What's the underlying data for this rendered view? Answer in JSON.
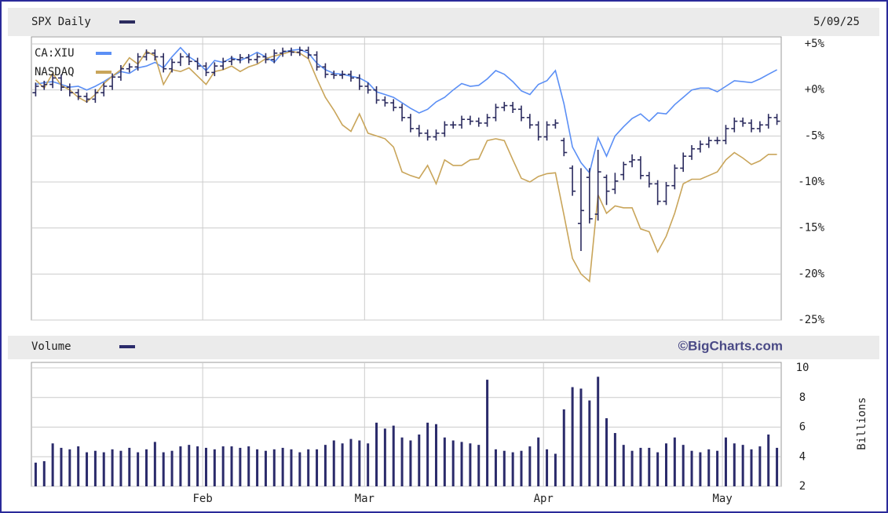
{
  "chart_data": [
    {
      "type": "ohlc",
      "date": "5/09/25",
      "ylim": [
        -25,
        5
      ],
      "yticks": [
        {
          "value": 5,
          "label": "+5%"
        },
        {
          "value": 0,
          "label": "+0%"
        },
        {
          "value": -5,
          "label": "-5%"
        },
        {
          "value": -10,
          "label": "-10%"
        },
        {
          "value": -15,
          "label": "-15%"
        },
        {
          "value": -20,
          "label": "-20%"
        },
        {
          "value": -25,
          "label": "-25%"
        }
      ],
      "grid": true,
      "series": [
        {
          "name": "SPX Daily",
          "type": "ohlc",
          "color": "#2b2b5e",
          "open": [
            -0.3,
            0.4,
            0.6,
            1.3,
            0.3,
            -0.3,
            -0.7,
            -1.0,
            -0.3,
            0.4,
            1.4,
            2.3,
            2.5,
            3.6,
            4.0,
            3.6,
            2.3,
            3.0,
            3.6,
            3.1,
            2.6,
            1.9,
            2.6,
            3.1,
            3.3,
            3.5,
            3.3,
            3.6,
            3.3,
            4.0,
            4.2,
            4.1,
            4.3,
            3.8,
            2.5,
            1.7,
            1.6,
            1.7,
            1.3,
            0.4,
            0.0,
            -1.1,
            -1.4,
            -1.9,
            -3.0,
            -4.2,
            -4.7,
            -5.1,
            -4.7,
            -3.8,
            -3.8,
            -3.2,
            -3.4,
            -3.6,
            -3.0,
            -1.9,
            -1.7,
            -2.1,
            -3.0,
            -3.8,
            -5.1,
            -3.8,
            -5.5,
            -8.5,
            -14.5,
            -9.5,
            -13.5,
            -9.5,
            -10.8,
            -9.2,
            -7.8,
            -7.6,
            -9.3,
            -10.2,
            -12.1,
            -10.4,
            -8.5,
            -7.2,
            -6.4,
            -5.9,
            -5.5,
            -5.5,
            -4.2,
            -3.4,
            -3.6,
            -4.2,
            -3.8,
            -3.0
          ],
          "high": [
            0.8,
            1.0,
            1.7,
            1.7,
            0.7,
            0.1,
            -0.3,
            0.1,
            0.8,
            1.8,
            2.7,
            2.9,
            4.0,
            4.4,
            4.4,
            4.0,
            3.4,
            4.0,
            4.0,
            3.5,
            3.0,
            3.0,
            3.5,
            3.7,
            3.9,
            3.9,
            4.0,
            4.0,
            4.4,
            4.6,
            4.6,
            4.7,
            4.7,
            4.2,
            2.9,
            2.1,
            2.1,
            2.1,
            1.7,
            0.8,
            0.4,
            -0.7,
            -1.0,
            -1.5,
            -2.6,
            -3.8,
            -4.3,
            -4.3,
            -3.4,
            -3.4,
            -2.8,
            -2.8,
            -3.0,
            -2.6,
            -1.5,
            -1.3,
            -1.3,
            -1.7,
            -2.6,
            -3.4,
            -3.4,
            -3.2,
            -5.2,
            -8.2,
            -8.5,
            -8.5,
            -6.5,
            -9.2,
            -9.0,
            -7.8,
            -7.0,
            -7.2,
            -8.9,
            -9.8,
            -10.0,
            -8.1,
            -6.8,
            -6.0,
            -5.5,
            -5.1,
            -5.1,
            -3.8,
            -3.0,
            -3.0,
            -3.2,
            -3.4,
            -2.6,
            -2.6
          ],
          "low": [
            -0.7,
            0.0,
            0.2,
            -0.1,
            -0.7,
            -1.1,
            -1.4,
            -1.4,
            -0.7,
            0.0,
            1.0,
            1.9,
            2.1,
            3.2,
            3.2,
            1.9,
            1.9,
            2.6,
            2.7,
            2.2,
            1.5,
            1.5,
            2.2,
            2.7,
            2.9,
            2.9,
            2.9,
            2.9,
            2.9,
            3.6,
            3.7,
            3.7,
            3.4,
            2.1,
            1.3,
            1.2,
            1.2,
            0.9,
            0.0,
            -0.4,
            -1.5,
            -1.8,
            -2.3,
            -3.4,
            -4.6,
            -5.1,
            -5.5,
            -5.5,
            -5.1,
            -4.2,
            -4.2,
            -3.8,
            -4.0,
            -4.0,
            -3.4,
            -2.3,
            -2.5,
            -3.4,
            -4.2,
            -5.5,
            -5.5,
            -4.2,
            -7.2,
            -11.5,
            -17.5,
            -14.5,
            -14.2,
            -12.5,
            -11.3,
            -9.8,
            -8.4,
            -9.7,
            -10.6,
            -12.5,
            -12.5,
            -10.8,
            -8.9,
            -7.6,
            -6.8,
            -6.3,
            -5.9,
            -5.9,
            -4.6,
            -4.0,
            -4.6,
            -4.6,
            -4.2,
            -3.8
          ],
          "close": [
            0.4,
            0.6,
            1.3,
            0.3,
            -0.3,
            -0.7,
            -1.0,
            -0.3,
            0.4,
            1.4,
            2.3,
            2.5,
            3.6,
            4.0,
            3.6,
            2.3,
            3.0,
            3.6,
            3.1,
            2.6,
            1.9,
            2.6,
            3.1,
            3.3,
            3.5,
            3.3,
            3.6,
            3.3,
            4.0,
            4.2,
            4.1,
            4.3,
            3.8,
            2.5,
            1.7,
            1.6,
            1.7,
            1.3,
            0.4,
            0.0,
            -1.1,
            -1.4,
            -1.9,
            -3.0,
            -4.2,
            -4.7,
            -5.1,
            -4.7,
            -3.8,
            -3.8,
            -3.2,
            -3.4,
            -3.6,
            -3.0,
            -1.9,
            -1.7,
            -2.1,
            -3.0,
            -3.8,
            -5.1,
            -3.8,
            -3.6,
            -6.8,
            -11.0,
            -13.1,
            -14.0,
            -8.9,
            -11.0,
            -9.9,
            -8.1,
            -7.6,
            -9.3,
            -10.2,
            -12.1,
            -10.4,
            -8.5,
            -7.2,
            -6.4,
            -5.9,
            -5.5,
            -5.5,
            -4.2,
            -3.4,
            -3.6,
            -4.2,
            -3.8,
            -3.0,
            -3.4
          ]
        },
        {
          "name": "CA:XIU",
          "type": "line",
          "color": "#5b8ff5",
          "values": [
            0.6,
            0.8,
            0.9,
            0.6,
            0.3,
            0.4,
            0.0,
            0.4,
            0.9,
            1.5,
            2.0,
            1.8,
            2.4,
            2.6,
            3.0,
            2.4,
            3.6,
            4.6,
            3.6,
            3.0,
            2.1,
            3.2,
            3.0,
            3.5,
            3.2,
            3.6,
            4.1,
            3.6,
            3.0,
            4.1,
            4.3,
            4.4,
            4.0,
            2.9,
            2.2,
            1.8,
            1.7,
            1.5,
            1.3,
            0.8,
            -0.2,
            -0.5,
            -0.8,
            -1.4,
            -2.0,
            -2.5,
            -2.1,
            -1.3,
            -0.8,
            0.0,
            0.7,
            0.4,
            0.5,
            1.2,
            2.1,
            1.7,
            0.9,
            -0.1,
            -0.5,
            0.6,
            1.0,
            2.1,
            -1.5,
            -6.2,
            -7.9,
            -9.0,
            -5.2,
            -7.2,
            -5.0,
            -4.0,
            -3.1,
            -2.6,
            -3.4,
            -2.5,
            -2.6,
            -1.6,
            -0.8,
            0.0,
            0.2,
            0.2,
            -0.2,
            0.4,
            1.0,
            0.9,
            0.8,
            1.2,
            1.7,
            2.2
          ]
        },
        {
          "name": "NASDAQ",
          "type": "line",
          "color": "#c9a55a",
          "values": [
            1.1,
            0.2,
            1.8,
            0.5,
            0.0,
            -0.8,
            -1.3,
            -0.5,
            0.7,
            1.5,
            2.2,
            3.5,
            2.8,
            4.2,
            3.7,
            0.6,
            2.2,
            2.0,
            2.4,
            1.5,
            0.6,
            2.0,
            2.2,
            2.6,
            2.0,
            2.5,
            2.8,
            3.4,
            3.7,
            3.9,
            4.2,
            4.0,
            3.4,
            1.2,
            -0.8,
            -2.2,
            -3.8,
            -4.5,
            -2.6,
            -4.7,
            -5.0,
            -5.3,
            -6.2,
            -8.9,
            -9.3,
            -9.6,
            -8.2,
            -10.2,
            -7.6,
            -8.2,
            -8.2,
            -7.6,
            -7.5,
            -5.5,
            -5.3,
            -5.5,
            -7.6,
            -9.6,
            -10.0,
            -9.4,
            -9.1,
            -9.0,
            -13.6,
            -18.3,
            -20.0,
            -20.8,
            -11.4,
            -13.4,
            -12.6,
            -12.8,
            -12.8,
            -15.1,
            -15.4,
            -17.6,
            -15.9,
            -13.4,
            -10.2,
            -9.7,
            -9.7,
            -9.3,
            -8.9,
            -7.6,
            -6.8,
            -7.4,
            -8.1,
            -7.7,
            -7.0,
            -7.0
          ]
        }
      ]
    },
    {
      "type": "bar",
      "title": "Volume",
      "source": "©BigCharts.com",
      "y_label": "Billions",
      "color": "#2b2b6b",
      "ylim": [
        2,
        10
      ],
      "yticks": [
        2,
        4,
        6,
        8,
        10
      ],
      "grid": true,
      "categories": [
        null,
        null,
        null,
        null,
        null,
        null,
        null,
        null,
        null,
        null,
        null,
        null,
        null,
        null,
        null,
        null,
        null,
        null,
        null,
        null,
        "Feb",
        null,
        null,
        null,
        null,
        null,
        null,
        null,
        null,
        null,
        null,
        null,
        null,
        null,
        null,
        null,
        null,
        null,
        null,
        "Mar",
        null,
        null,
        null,
        null,
        null,
        null,
        null,
        null,
        null,
        null,
        null,
        null,
        null,
        null,
        null,
        null,
        null,
        null,
        null,
        null,
        "Apr",
        null,
        null,
        null,
        null,
        null,
        null,
        null,
        null,
        null,
        null,
        null,
        null,
        null,
        null,
        null,
        null,
        null,
        null,
        null,
        null,
        "May",
        null,
        null,
        null,
        null,
        null,
        null
      ],
      "values": [
        3.6,
        3.7,
        4.9,
        4.6,
        4.5,
        4.7,
        4.3,
        4.4,
        4.3,
        4.5,
        4.4,
        4.6,
        4.3,
        4.5,
        5.0,
        4.3,
        4.4,
        4.7,
        4.8,
        4.7,
        4.6,
        4.5,
        4.7,
        4.7,
        4.6,
        4.7,
        4.5,
        4.4,
        4.5,
        4.6,
        4.5,
        4.3,
        4.5,
        4.5,
        4.8,
        5.1,
        4.9,
        5.2,
        5.1,
        4.9,
        6.3,
        5.9,
        6.1,
        5.3,
        5.1,
        5.5,
        6.3,
        6.2,
        5.3,
        5.1,
        5.0,
        4.9,
        4.8,
        9.2,
        4.5,
        4.4,
        4.3,
        4.4,
        4.7,
        5.3,
        4.5,
        4.2,
        7.2,
        8.7,
        8.6,
        7.8,
        9.4,
        6.6,
        5.6,
        4.8,
        4.4,
        4.6,
        4.6,
        4.3,
        4.9,
        5.3,
        4.8,
        4.4,
        4.3,
        4.5,
        4.4,
        5.3,
        4.9,
        4.8,
        4.5,
        4.7,
        5.5,
        4.6
      ]
    }
  ]
}
